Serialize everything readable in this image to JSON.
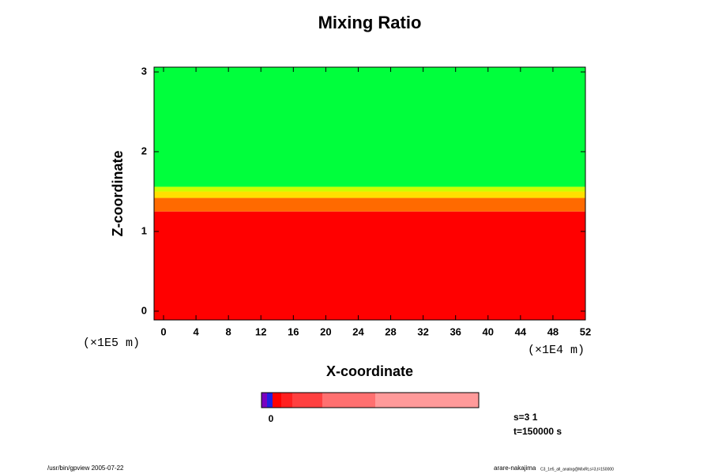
{
  "chart_data": {
    "type": "contour",
    "title": "Mixing Ratio",
    "xlabel": "X-coordinate",
    "ylabel": "Z-coordinate",
    "xunit": "(×1E4 m)",
    "yunit": "(×1E5 m)",
    "xlim": [
      -1.17,
      52
    ],
    "ylim": [
      -0.11,
      3.06
    ],
    "xticks": [
      0,
      4,
      8,
      12,
      16,
      20,
      24,
      28,
      32,
      36,
      40,
      44,
      48,
      52
    ],
    "yticks": [
      0,
      1,
      2,
      3
    ],
    "regions": [
      {
        "color": "#ff0000",
        "z": [
          -0.11,
          1.25
        ]
      },
      {
        "color": "#ff6a00",
        "z": [
          1.25,
          1.42
        ]
      },
      {
        "color": "#ffe000",
        "z": [
          1.42,
          1.5
        ]
      },
      {
        "color": "#ccff00",
        "z": [
          1.5,
          1.56
        ]
      },
      {
        "color": "#00ff3c",
        "z": [
          1.56,
          3.06
        ]
      }
    ],
    "colorbar": {
      "colors": [
        "#7a00c0",
        "#2020e0",
        "#ff0000",
        "#ff2020",
        "#ff4040",
        "#ff7070",
        "#ff9a9a"
      ],
      "ticks": [
        0
      ]
    },
    "annotations": [
      "s=3 1",
      "t=150000 s"
    ],
    "footer_left": "/usr/bin/gpview 2005-07-22",
    "footer_right": "arare-nakajima",
    "footer_right_small": "C3_1e5_all_analog@MixRt,s=3,t=150000"
  }
}
